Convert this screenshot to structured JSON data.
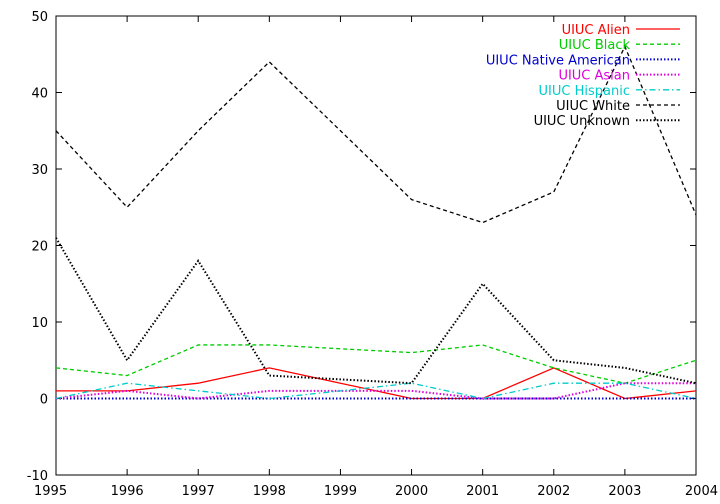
{
  "chart_data": {
    "type": "line",
    "title": "",
    "xlabel": "",
    "ylabel": "",
    "x": [
      1995,
      1996,
      1997,
      1998,
      1999,
      2000,
      2001,
      2002,
      2003,
      2004
    ],
    "xlim": [
      1995,
      2004
    ],
    "ylim": [
      -10,
      50
    ],
    "x_ticks": [
      "1995",
      "1996",
      "1997",
      "1998",
      "1999",
      "2000",
      "2001",
      "2002",
      "2003",
      "2004"
    ],
    "y_ticks": [
      "-10",
      "0",
      "10",
      "20",
      "30",
      "40",
      "50"
    ],
    "grid": false,
    "legend_position": "top-right",
    "series": [
      {
        "name": "UIUC Alien",
        "color": "#ff0000",
        "dash": "solid",
        "values": [
          1,
          1,
          2,
          4,
          2,
          0,
          0,
          4,
          0,
          1
        ]
      },
      {
        "name": "UIUC Black",
        "color": "#00cc00",
        "dash": "dashed",
        "values": [
          4,
          3,
          7,
          7,
          6.5,
          6,
          7,
          4,
          2,
          5
        ]
      },
      {
        "name": "UIUC Native American",
        "color": "#0000cc",
        "dash": "dotted",
        "values": [
          0,
          0,
          0,
          0,
          0,
          0,
          0,
          0,
          0,
          0
        ]
      },
      {
        "name": "UIUC Asian",
        "color": "#dd00dd",
        "dash": "dotted",
        "values": [
          0,
          1,
          0,
          1,
          1,
          1,
          0,
          0,
          2,
          2
        ]
      },
      {
        "name": "UIUC Hispanic",
        "color": "#00cccc",
        "dash": "dashdot",
        "values": [
          0,
          2,
          1,
          0,
          1,
          2,
          0,
          2,
          2,
          0
        ]
      },
      {
        "name": "UIUC White",
        "color": "#000000",
        "dash": "dashed",
        "values": [
          35,
          25,
          35,
          44,
          35,
          26,
          23,
          27,
          46,
          24
        ]
      },
      {
        "name": "UIUC Unknown",
        "color": "#000000",
        "dash": "dotted",
        "values": [
          21,
          5,
          18,
          3,
          2.5,
          2,
          15,
          5,
          4,
          2
        ]
      }
    ]
  }
}
